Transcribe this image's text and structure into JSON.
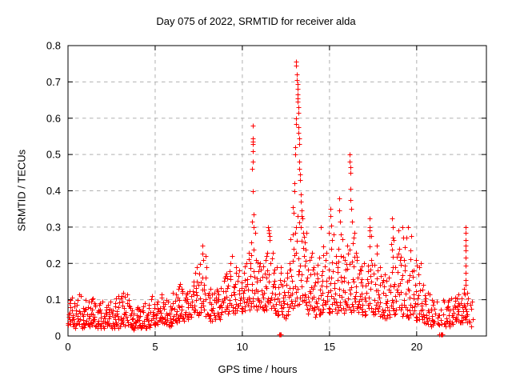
{
  "title": "Day 075 of 2022, SRMTID for receiver alda",
  "xlabel": "GPS time / hours",
  "ylabel": "SRMTID / TECUs",
  "colors": {
    "marker": "#ff0000",
    "grid": "#b0b0b0",
    "axis": "#000000",
    "background": "#ffffff",
    "text": "#000000"
  },
  "chart_data": {
    "type": "scatter",
    "title": "Day 075 of 2022, SRMTID for receiver alda",
    "xlabel": "GPS time / hours",
    "ylabel": "SRMTID / TECUs",
    "marker": "plus",
    "marker_color": "#ff0000",
    "marker_half_size": 3,
    "grid": true,
    "legend": "none",
    "xlim": [
      0,
      24
    ],
    "ylim": [
      0,
      0.8
    ],
    "xticks": [
      0,
      5,
      10,
      15,
      20
    ],
    "yticks": [
      0,
      0.1,
      0.2,
      0.3,
      0.4,
      0.5,
      0.6,
      0.7,
      0.8
    ],
    "bin_width": 0.25,
    "density_bias": 1.35,
    "dither": [
      0.06,
      0.63,
      0.3,
      0.86,
      0.14,
      0.5,
      0.95,
      0.22,
      0.73,
      0.41,
      0.08,
      0.56,
      1.0,
      0.33,
      0.79,
      0.18,
      0.47,
      0.91,
      0.26,
      0.68
    ],
    "toffsets": [
      0.06,
      0.52,
      0.28,
      0.83,
      0.64,
      0.4,
      0.97,
      0.16,
      0.75,
      0.33,
      0.56,
      0.91,
      0.03,
      0.45,
      0.7,
      0.22,
      0.88,
      0.12,
      0.6,
      0.37
    ],
    "bins": [
      [
        0.0,
        14,
        0.03,
        0.105
      ],
      [
        0.25,
        12,
        0.02,
        0.09
      ],
      [
        0.5,
        12,
        0.03,
        0.115
      ],
      [
        0.75,
        12,
        0.02,
        0.085
      ],
      [
        1.0,
        12,
        0.025,
        0.1
      ],
      [
        1.25,
        13,
        0.03,
        0.11
      ],
      [
        1.5,
        12,
        0.02,
        0.09
      ],
      [
        1.75,
        12,
        0.02,
        0.1
      ],
      [
        2.0,
        12,
        0.02,
        0.08
      ],
      [
        2.25,
        12,
        0.025,
        0.1
      ],
      [
        2.5,
        13,
        0.02,
        0.09
      ],
      [
        2.75,
        12,
        0.02,
        0.11
      ],
      [
        3.0,
        13,
        0.03,
        0.12
      ],
      [
        3.25,
        12,
        0.025,
        0.115
      ],
      [
        3.5,
        12,
        0.02,
        0.09
      ],
      [
        3.75,
        12,
        0.015,
        0.08
      ],
      [
        4.0,
        12,
        0.02,
        0.08
      ],
      [
        4.25,
        12,
        0.02,
        0.09
      ],
      [
        4.5,
        12,
        0.02,
        0.09
      ],
      [
        4.75,
        12,
        0.03,
        0.11
      ],
      [
        5.0,
        12,
        0.03,
        0.1
      ],
      [
        5.25,
        12,
        0.035,
        0.115
      ],
      [
        5.5,
        12,
        0.03,
        0.1
      ],
      [
        5.75,
        12,
        0.025,
        0.09
      ],
      [
        6.0,
        12,
        0.035,
        0.12
      ],
      [
        6.25,
        13,
        0.04,
        0.15
      ],
      [
        6.5,
        12,
        0.04,
        0.13
      ],
      [
        6.75,
        12,
        0.045,
        0.13
      ],
      [
        7.0,
        12,
        0.05,
        0.15
      ],
      [
        7.25,
        13,
        0.055,
        0.2
      ],
      [
        7.5,
        13,
        0.06,
        0.25
      ],
      [
        7.75,
        12,
        0.05,
        0.22
      ],
      [
        8.0,
        12,
        0.04,
        0.13
      ],
      [
        8.25,
        12,
        0.04,
        0.12
      ],
      [
        8.5,
        12,
        0.045,
        0.14
      ],
      [
        8.75,
        12,
        0.055,
        0.16
      ],
      [
        9.0,
        13,
        0.06,
        0.18
      ],
      [
        9.25,
        13,
        0.065,
        0.22
      ],
      [
        9.5,
        13,
        0.06,
        0.2
      ],
      [
        9.75,
        13,
        0.065,
        0.18
      ],
      [
        10.0,
        14,
        0.065,
        0.2
      ],
      [
        10.25,
        14,
        0.07,
        0.23
      ],
      [
        10.5,
        14,
        0.075,
        0.3
      ],
      [
        10.75,
        14,
        0.07,
        0.22
      ],
      [
        11.0,
        14,
        0.065,
        0.2
      ],
      [
        11.25,
        14,
        0.07,
        0.24
      ],
      [
        11.5,
        14,
        0.07,
        0.29
      ],
      [
        11.75,
        14,
        0.06,
        0.2
      ],
      [
        12.0,
        13,
        0.055,
        0.19
      ],
      [
        12.25,
        13,
        0.045,
        0.16
      ],
      [
        12.5,
        14,
        0.055,
        0.2
      ],
      [
        12.75,
        15,
        0.07,
        0.28
      ],
      [
        13.0,
        15,
        0.08,
        0.33
      ],
      [
        13.25,
        15,
        0.08,
        0.33
      ],
      [
        13.5,
        15,
        0.07,
        0.3
      ],
      [
        13.75,
        14,
        0.055,
        0.23
      ],
      [
        14.0,
        14,
        0.05,
        0.2
      ],
      [
        14.25,
        14,
        0.055,
        0.215
      ],
      [
        14.5,
        14,
        0.06,
        0.26
      ],
      [
        14.75,
        14,
        0.06,
        0.23
      ],
      [
        15.0,
        14,
        0.06,
        0.28
      ],
      [
        15.25,
        14,
        0.06,
        0.22
      ],
      [
        15.5,
        14,
        0.065,
        0.28
      ],
      [
        15.75,
        14,
        0.06,
        0.23
      ],
      [
        16.0,
        14,
        0.06,
        0.25
      ],
      [
        16.25,
        14,
        0.065,
        0.3
      ],
      [
        16.5,
        14,
        0.06,
        0.23
      ],
      [
        16.75,
        13,
        0.055,
        0.21
      ],
      [
        17.0,
        13,
        0.055,
        0.195
      ],
      [
        17.25,
        14,
        0.06,
        0.29
      ],
      [
        17.5,
        13,
        0.055,
        0.25
      ],
      [
        17.75,
        13,
        0.05,
        0.19
      ],
      [
        18.0,
        13,
        0.045,
        0.17
      ],
      [
        18.25,
        13,
        0.045,
        0.16
      ],
      [
        18.5,
        14,
        0.055,
        0.28
      ],
      [
        18.75,
        13,
        0.055,
        0.24
      ],
      [
        19.0,
        13,
        0.05,
        0.23
      ],
      [
        19.25,
        14,
        0.05,
        0.27
      ],
      [
        19.5,
        13,
        0.045,
        0.25
      ],
      [
        19.75,
        13,
        0.04,
        0.18
      ],
      [
        20.0,
        13,
        0.04,
        0.2
      ],
      [
        20.25,
        12,
        0.035,
        0.14
      ],
      [
        20.5,
        12,
        0.03,
        0.12
      ],
      [
        20.75,
        12,
        0.025,
        0.11
      ],
      [
        21.0,
        8,
        0.03,
        0.1
      ],
      [
        21.25,
        5,
        0.025,
        0.08
      ],
      [
        21.5,
        10,
        0.025,
        0.1
      ],
      [
        21.75,
        12,
        0.025,
        0.11
      ],
      [
        22.0,
        12,
        0.03,
        0.105
      ],
      [
        22.25,
        13,
        0.035,
        0.12
      ],
      [
        22.5,
        13,
        0.035,
        0.13
      ],
      [
        22.75,
        13,
        0.035,
        0.12
      ],
      [
        23.0,
        6,
        0.02,
        0.095
      ]
    ],
    "spike_points": [
      [
        10.55,
        0.46
      ],
      [
        10.6,
        0.58
      ],
      [
        10.6,
        0.545
      ],
      [
        10.62,
        0.535
      ],
      [
        10.58,
        0.53
      ],
      [
        10.62,
        0.51
      ],
      [
        10.6,
        0.48
      ],
      [
        10.58,
        0.4
      ],
      [
        10.65,
        0.335
      ],
      [
        10.55,
        0.315
      ],
      [
        11.45,
        0.3
      ],
      [
        11.5,
        0.285
      ],
      [
        12.9,
        0.355
      ],
      [
        12.95,
        0.34
      ],
      [
        13.0,
        0.42
      ],
      [
        13.0,
        0.4
      ],
      [
        13.05,
        0.52
      ],
      [
        13.05,
        0.5
      ],
      [
        13.08,
        0.6
      ],
      [
        13.08,
        0.585
      ],
      [
        13.1,
        0.755
      ],
      [
        13.1,
        0.745
      ],
      [
        13.12,
        0.72
      ],
      [
        13.12,
        0.705
      ],
      [
        13.15,
        0.695
      ],
      [
        13.15,
        0.68
      ],
      [
        13.15,
        0.665
      ],
      [
        13.18,
        0.655
      ],
      [
        13.18,
        0.645
      ],
      [
        13.2,
        0.63
      ],
      [
        13.2,
        0.615
      ],
      [
        13.22,
        0.575
      ],
      [
        13.22,
        0.56
      ],
      [
        13.25,
        0.545
      ],
      [
        13.25,
        0.53
      ],
      [
        13.28,
        0.48
      ],
      [
        13.28,
        0.46
      ],
      [
        13.3,
        0.445
      ],
      [
        13.3,
        0.43
      ],
      [
        13.35,
        0.39
      ],
      [
        13.35,
        0.37
      ],
      [
        13.4,
        0.345
      ],
      [
        13.45,
        0.325
      ],
      [
        14.5,
        0.3
      ],
      [
        14.95,
        0.285
      ],
      [
        15.05,
        0.35
      ],
      [
        15.05,
        0.33
      ],
      [
        15.08,
        0.305
      ],
      [
        15.55,
        0.38
      ],
      [
        15.55,
        0.345
      ],
      [
        15.6,
        0.315
      ],
      [
        16.15,
        0.5
      ],
      [
        16.15,
        0.48
      ],
      [
        16.18,
        0.465
      ],
      [
        16.2,
        0.45
      ],
      [
        16.2,
        0.405
      ],
      [
        16.22,
        0.375
      ],
      [
        16.25,
        0.35
      ],
      [
        16.28,
        0.315
      ],
      [
        17.28,
        0.325
      ],
      [
        17.3,
        0.3
      ],
      [
        17.32,
        0.275
      ],
      [
        18.6,
        0.325
      ],
      [
        18.62,
        0.3
      ],
      [
        18.65,
        0.27
      ],
      [
        18.95,
        0.29
      ],
      [
        19.2,
        0.3
      ],
      [
        19.25,
        0.27
      ],
      [
        19.5,
        0.3
      ],
      [
        19.7,
        0.275
      ],
      [
        19.95,
        0.21
      ],
      [
        20.0,
        0.195
      ],
      [
        22.8,
        0.3
      ],
      [
        22.8,
        0.285
      ],
      [
        22.82,
        0.265
      ],
      [
        22.8,
        0.25
      ],
      [
        22.82,
        0.235
      ],
      [
        22.8,
        0.215
      ],
      [
        22.82,
        0.195
      ],
      [
        22.8,
        0.175
      ],
      [
        22.82,
        0.155
      ],
      [
        22.8,
        0.14
      ]
    ],
    "zero_points": [
      [
        12.1,
        0.004
      ],
      [
        12.18,
        0.004
      ],
      [
        12.22,
        0.004
      ],
      [
        21.3,
        0.004
      ],
      [
        21.38,
        0.004
      ],
      [
        21.44,
        0.004
      ],
      [
        21.47,
        0.004
      ]
    ]
  }
}
